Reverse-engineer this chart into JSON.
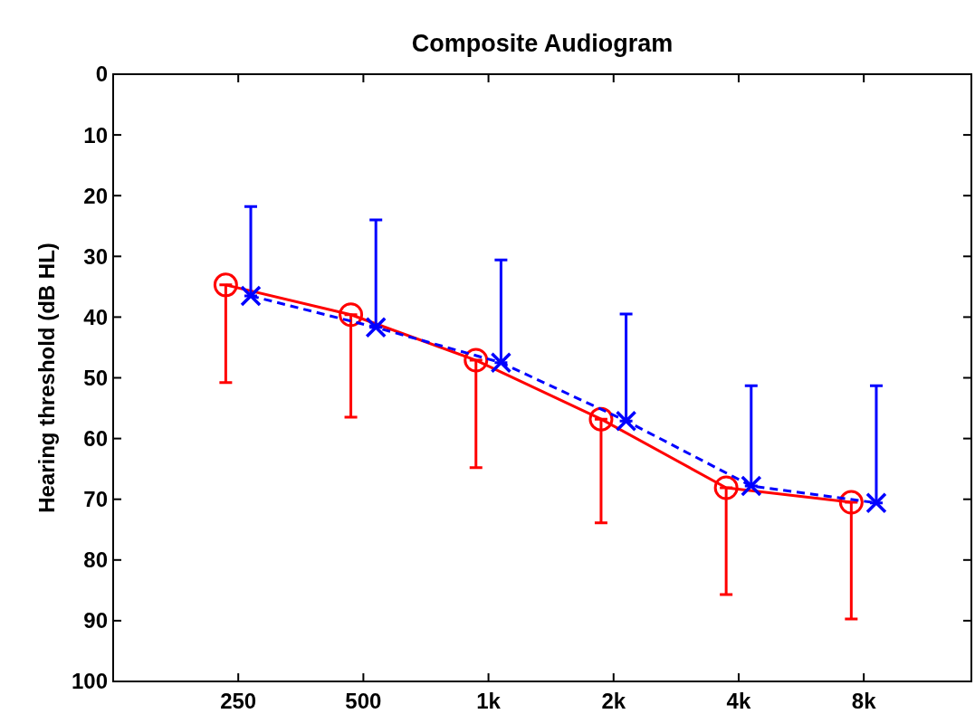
{
  "chart_data": {
    "type": "line",
    "title": "Composite Audiogram",
    "ylabel": "Hearing threshold (dB HL)",
    "categories": [
      "250",
      "500",
      "1k",
      "2k",
      "4k",
      "8k"
    ],
    "ylim": [
      100,
      0
    ],
    "yticks": [
      0,
      10,
      20,
      30,
      40,
      50,
      60,
      70,
      80,
      90,
      100
    ],
    "grid": false,
    "series": [
      {
        "color": "#ff0000",
        "marker": "circle",
        "line_style": "solid",
        "values": [
          34.7,
          39.6,
          47.1,
          56.8,
          68.1,
          70.5
        ],
        "errors": [
          [
            34.7,
            50.8
          ],
          [
            39.6,
            56.5
          ],
          [
            47.1,
            64.8
          ],
          [
            56.8,
            73.9
          ],
          [
            68.1,
            85.7
          ],
          [
            70.5,
            89.7
          ]
        ]
      },
      {
        "color": "#0000ff",
        "marker": "cross",
        "line_style": "dashed",
        "values": [
          36.5,
          41.7,
          47.5,
          57.1,
          67.8,
          70.6
        ],
        "errors": [
          [
            21.8,
            36.5
          ],
          [
            24.0,
            41.7
          ],
          [
            30.6,
            47.5
          ],
          [
            39.5,
            57.1
          ],
          [
            51.3,
            67.8
          ],
          [
            51.3,
            70.6
          ]
        ]
      }
    ]
  }
}
